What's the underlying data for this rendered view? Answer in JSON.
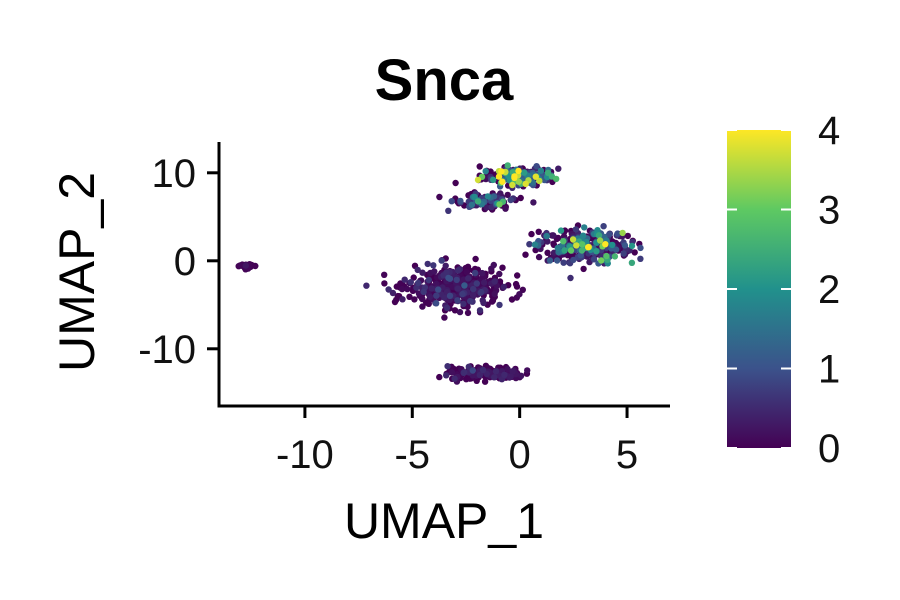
{
  "chart_data": {
    "type": "scatter",
    "title": "Snca",
    "xlabel": "UMAP_1",
    "ylabel": "UMAP_2",
    "xlim": [
      -14,
      7
    ],
    "ylim": [
      -16.5,
      13.5
    ],
    "x_ticks": [
      -10,
      -5,
      0,
      5
    ],
    "y_ticks": [
      10,
      0,
      -10
    ],
    "x_tick_labels": [
      "-10",
      "-5",
      "0",
      "5"
    ],
    "y_tick_labels": [
      "10",
      "0",
      "-10"
    ],
    "grid": false,
    "legend": "right",
    "color_scale": {
      "name": "viridis",
      "min": 0,
      "max": 4,
      "ticks": [
        0,
        1,
        2,
        3,
        4
      ],
      "tick_labels": [
        "0",
        "1",
        "2",
        "3",
        "4"
      ],
      "colors": [
        "#440154",
        "#3b528b",
        "#21918c",
        "#5ec962",
        "#fde725"
      ]
    },
    "clusters": [
      {
        "center": [
          -12.7,
          -0.6
        ],
        "spread": [
          0.35,
          0.25
        ],
        "count": 25,
        "expression_mean": 0.05
      },
      {
        "center": [
          0.0,
          9.6
        ],
        "spread": [
          1.6,
          0.9
        ],
        "count": 180,
        "expression_mean": 1.6
      },
      {
        "center": [
          -1.7,
          6.8
        ],
        "spread": [
          1.3,
          0.8
        ],
        "count": 110,
        "expression_mean": 0.7
      },
      {
        "center": [
          3.0,
          1.8
        ],
        "spread": [
          2.0,
          1.7
        ],
        "count": 320,
        "expression_mean": 1.0
      },
      {
        "center": [
          -3.0,
          -3.0
        ],
        "spread": [
          2.0,
          2.0
        ],
        "count": 420,
        "expression_mean": 0.25
      },
      {
        "center": [
          -1.5,
          -12.8
        ],
        "spread": [
          1.6,
          0.7
        ],
        "count": 170,
        "expression_mean": 0.2
      }
    ]
  }
}
